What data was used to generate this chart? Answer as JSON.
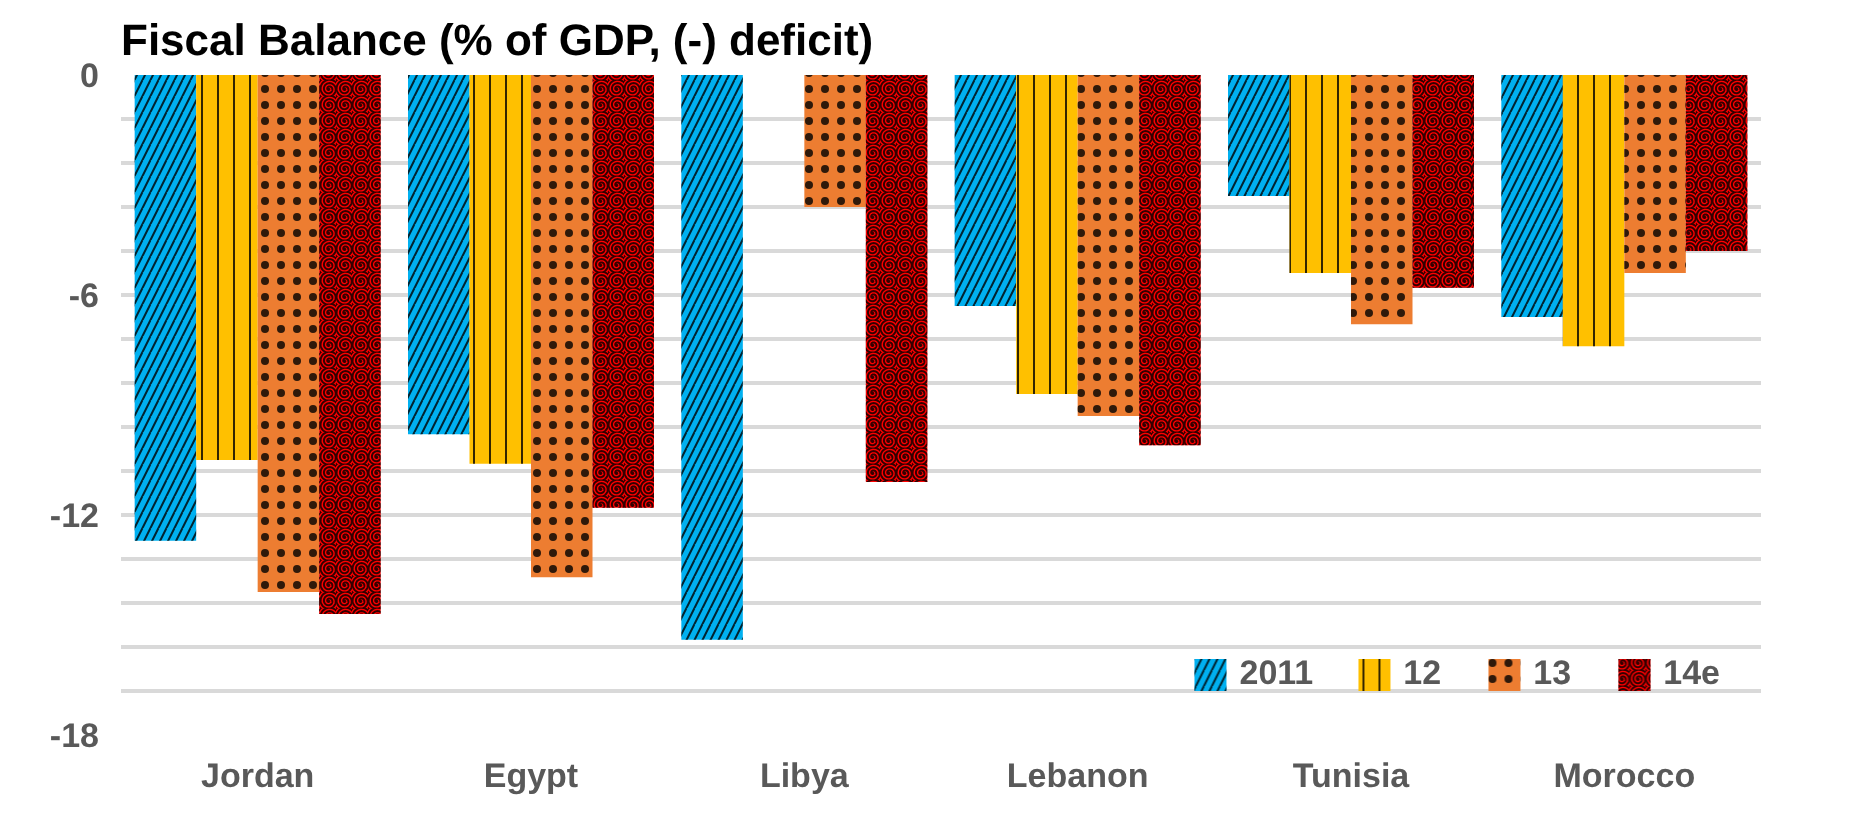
{
  "chart_data": {
    "type": "bar",
    "title": "Fiscal Balance (% of GDP, (-) deficit)",
    "categories": [
      "Jordan",
      "Egypt",
      "Libya",
      "Lebanon",
      "Tunisia",
      "Morocco"
    ],
    "series": [
      {
        "name": "2011",
        "color": "#00b0f0",
        "values": [
          -12.7,
          -9.8,
          -15.4,
          -6.3,
          -3.3,
          -6.6
        ]
      },
      {
        "name": "12",
        "color": "#ffc000",
        "values": [
          -10.5,
          -10.6,
          null,
          -8.7,
          -5.4,
          -7.4
        ]
      },
      {
        "name": "13",
        "color": "#ed7d31",
        "values": [
          -14.1,
          -13.7,
          -3.6,
          -9.3,
          -6.8,
          -5.4
        ]
      },
      {
        "name": "14e",
        "color": "#ff0000",
        "values": [
          -14.7,
          -11.8,
          -11.1,
          -10.1,
          -5.8,
          -4.8
        ]
      }
    ],
    "ylim": [
      -18,
      0
    ],
    "yticks": [
      0,
      {
        "value": -1.2,
        "label": null
      },
      {
        "value": -2.4,
        "label": null
      },
      {
        "value": -3.6,
        "label": null
      },
      {
        "value": -4.8,
        "label": null
      },
      -6,
      {
        "value": -7.2,
        "label": null
      },
      {
        "value": -8.4,
        "label": null
      },
      {
        "value": -9.6,
        "label": null
      },
      {
        "value": -10.8,
        "label": null
      },
      -12,
      {
        "value": -13.2,
        "label": null
      },
      {
        "value": -14.4,
        "label": null
      },
      {
        "value": -15.6,
        "label": null
      },
      {
        "value": -16.8,
        "label": null
      },
      -18
    ],
    "grid": "y",
    "legend": "bottom right"
  }
}
